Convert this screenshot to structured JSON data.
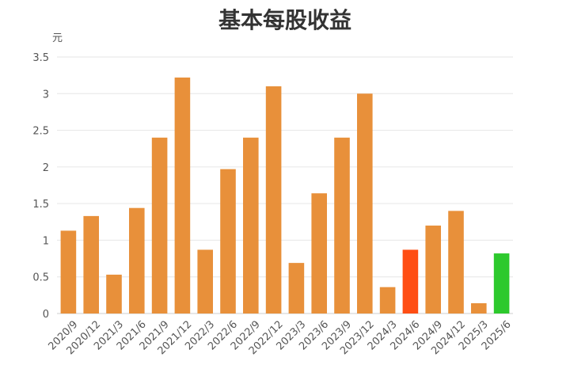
{
  "chart_data": {
    "type": "bar",
    "title": "基本每股收益",
    "unit_label": "元",
    "categories": [
      "2020/9",
      "2020/12",
      "2021/3",
      "2021/6",
      "2021/9",
      "2021/12",
      "2022/3",
      "2022/6",
      "2022/9",
      "2022/12",
      "2023/3",
      "2023/6",
      "2023/9",
      "2023/12",
      "2024/3",
      "2024/6",
      "2024/9",
      "2024/12",
      "2025/3",
      "2025/6"
    ],
    "values": [
      1.13,
      1.33,
      0.53,
      1.44,
      2.4,
      3.22,
      0.87,
      1.97,
      2.4,
      3.1,
      0.69,
      1.64,
      2.4,
      3.0,
      0.36,
      0.87,
      1.2,
      1.4,
      0.14,
      0.82
    ],
    "ylim": [
      0,
      3.5
    ],
    "yticks": [
      "0",
      "0.5",
      "1",
      "1.5",
      "2",
      "2.5",
      "3",
      "3.5"
    ],
    "grid": true,
    "colors": {
      "default": "#E8903A",
      "highlight_2024_6": "#FF4E14",
      "highlight_2025_6": "#2DC92D"
    },
    "bar_colors": [
      "default",
      "default",
      "default",
      "default",
      "default",
      "default",
      "default",
      "default",
      "default",
      "default",
      "default",
      "default",
      "default",
      "default",
      "default",
      "highlight_2024_6",
      "default",
      "default",
      "default",
      "highlight_2025_6"
    ]
  }
}
